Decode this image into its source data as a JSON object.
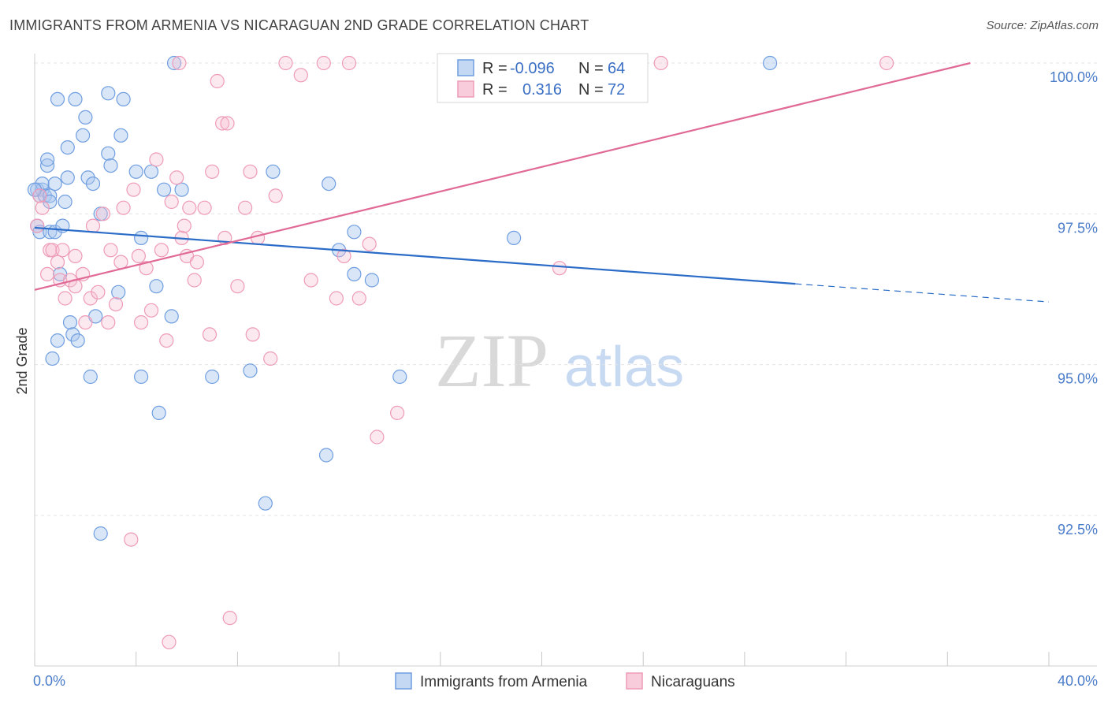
{
  "title": "IMMIGRANTS FROM ARMENIA VS NICARAGUAN 2ND GRADE CORRELATION CHART",
  "source": "Source: ZipAtlas.com",
  "watermark": {
    "zip": "ZIP",
    "atlas": "atlas"
  },
  "chart_data": {
    "type": "scatter",
    "ylabel": "2nd Grade",
    "xlim": [
      0,
      40
    ],
    "ylim": [
      90.2,
      100.2
    ],
    "x_tick_labels": [
      {
        "value": 0,
        "label": "0.0%"
      },
      {
        "value": 40,
        "label": "40.0%"
      }
    ],
    "x_minor_ticks": [
      4,
      8,
      12,
      16,
      20,
      24,
      28,
      32,
      36
    ],
    "y_ticks": [
      {
        "value": 100.0,
        "label": "100.0%"
      },
      {
        "value": 97.5,
        "label": "97.5%"
      },
      {
        "value": 95.0,
        "label": "95.0%"
      },
      {
        "value": 92.5,
        "label": "92.5%"
      }
    ],
    "colors": {
      "armenia": "#6f9ee0",
      "nicaraguans": "#ee9bb7",
      "armenia_line": "#2a6cc7",
      "nicaraguans_line": "#e06a95"
    },
    "legend": [
      {
        "r_label": "R =",
        "r": "-0.096",
        "n_label": "N =",
        "n": "64"
      },
      {
        "r_label": "R =",
        "r": "0.316",
        "n_label": "N =",
        "n": "72"
      }
    ],
    "series": [
      {
        "name": "Immigrants from Armenia",
        "points": [
          [
            0.1,
            97.3
          ],
          [
            0.1,
            97.9
          ],
          [
            0.2,
            97.8
          ],
          [
            0.2,
            97.2
          ],
          [
            0.3,
            97.9
          ],
          [
            0.3,
            98.0
          ],
          [
            0.4,
            97.8
          ],
          [
            0.5,
            98.3
          ],
          [
            0.5,
            98.4
          ],
          [
            0.6,
            97.8
          ],
          [
            0.6,
            97.7
          ],
          [
            0.6,
            97.2
          ],
          [
            0.7,
            95.1
          ],
          [
            0.8,
            98.0
          ],
          [
            0.8,
            97.2
          ],
          [
            0.9,
            95.4
          ],
          [
            0.9,
            99.4
          ],
          [
            1.0,
            96.5
          ],
          [
            1.1,
            97.3
          ],
          [
            1.2,
            97.7
          ],
          [
            1.3,
            98.6
          ],
          [
            1.3,
            98.1
          ],
          [
            1.4,
            95.7
          ],
          [
            1.5,
            95.5
          ],
          [
            1.6,
            99.4
          ],
          [
            1.7,
            95.4
          ],
          [
            1.9,
            98.8
          ],
          [
            2.0,
            99.1
          ],
          [
            2.1,
            98.1
          ],
          [
            2.2,
            94.8
          ],
          [
            2.3,
            98.0
          ],
          [
            2.4,
            95.8
          ],
          [
            2.6,
            92.2
          ],
          [
            2.6,
            97.5
          ],
          [
            2.9,
            98.5
          ],
          [
            2.9,
            99.5
          ],
          [
            3.0,
            98.3
          ],
          [
            3.3,
            96.2
          ],
          [
            3.4,
            98.8
          ],
          [
            3.5,
            99.4
          ],
          [
            4.0,
            98.2
          ],
          [
            4.2,
            97.1
          ],
          [
            4.2,
            94.8
          ],
          [
            4.6,
            98.2
          ],
          [
            4.8,
            96.3
          ],
          [
            4.9,
            94.2
          ],
          [
            5.1,
            97.9
          ],
          [
            5.4,
            95.8
          ],
          [
            5.5,
            100.0
          ],
          [
            5.8,
            97.9
          ],
          [
            7.0,
            94.8
          ],
          [
            8.5,
            94.9
          ],
          [
            9.1,
            92.7
          ],
          [
            9.4,
            98.2
          ],
          [
            11.5,
            93.5
          ],
          [
            11.6,
            98.0
          ],
          [
            12.0,
            96.9
          ],
          [
            12.6,
            96.5
          ],
          [
            12.6,
            97.2
          ],
          [
            13.3,
            96.4
          ],
          [
            14.4,
            94.8
          ],
          [
            18.9,
            97.1
          ],
          [
            29.0,
            100.0
          ],
          [
            0.0,
            97.9
          ]
        ],
        "trend": {
          "x0": 0,
          "y0": 97.27,
          "x1": 30.0,
          "y1": 96.34,
          "dash_x1": 40,
          "dash_y1": 96.04
        }
      },
      {
        "name": "Nicaraguans",
        "points": [
          [
            0.1,
            97.3
          ],
          [
            0.2,
            97.8
          ],
          [
            0.5,
            96.5
          ],
          [
            0.6,
            96.9
          ],
          [
            0.7,
            96.9
          ],
          [
            0.9,
            96.7
          ],
          [
            1.0,
            96.4
          ],
          [
            1.2,
            96.1
          ],
          [
            1.4,
            96.4
          ],
          [
            1.6,
            96.3
          ],
          [
            1.6,
            96.8
          ],
          [
            1.9,
            96.5
          ],
          [
            2.0,
            95.7
          ],
          [
            2.2,
            96.1
          ],
          [
            2.3,
            97.3
          ],
          [
            2.5,
            96.2
          ],
          [
            2.7,
            97.5
          ],
          [
            2.9,
            95.7
          ],
          [
            3.0,
            96.9
          ],
          [
            3.2,
            96.0
          ],
          [
            3.4,
            96.7
          ],
          [
            3.5,
            97.6
          ],
          [
            3.8,
            92.1
          ],
          [
            3.9,
            97.9
          ],
          [
            4.1,
            96.8
          ],
          [
            4.2,
            95.7
          ],
          [
            4.4,
            96.6
          ],
          [
            4.6,
            95.9
          ],
          [
            4.8,
            98.4
          ],
          [
            5.0,
            96.9
          ],
          [
            5.2,
            95.4
          ],
          [
            5.4,
            97.7
          ],
          [
            5.6,
            98.1
          ],
          [
            5.7,
            100.0
          ],
          [
            5.8,
            97.1
          ],
          [
            5.9,
            97.3
          ],
          [
            6.0,
            96.8
          ],
          [
            6.1,
            97.6
          ],
          [
            6.3,
            96.4
          ],
          [
            6.4,
            96.7
          ],
          [
            6.7,
            97.6
          ],
          [
            6.9,
            95.5
          ],
          [
            7.0,
            98.2
          ],
          [
            7.2,
            99.7
          ],
          [
            7.4,
            99.0
          ],
          [
            7.5,
            97.1
          ],
          [
            7.6,
            99.0
          ],
          [
            7.7,
            90.8
          ],
          [
            8.0,
            96.3
          ],
          [
            8.3,
            97.6
          ],
          [
            8.5,
            98.2
          ],
          [
            8.6,
            95.5
          ],
          [
            8.8,
            97.1
          ],
          [
            9.3,
            95.1
          ],
          [
            9.5,
            97.8
          ],
          [
            9.9,
            100.0
          ],
          [
            10.5,
            99.8
          ],
          [
            10.9,
            96.4
          ],
          [
            11.4,
            100.0
          ],
          [
            11.9,
            96.1
          ],
          [
            12.2,
            96.8
          ],
          [
            12.4,
            100.0
          ],
          [
            12.8,
            96.1
          ],
          [
            13.2,
            97.0
          ],
          [
            13.5,
            93.8
          ],
          [
            14.3,
            94.2
          ],
          [
            20.7,
            96.6
          ],
          [
            24.7,
            100.0
          ],
          [
            33.6,
            100.0
          ],
          [
            5.3,
            90.4
          ],
          [
            1.1,
            96.9
          ],
          [
            0.3,
            97.6
          ]
        ],
        "trend": {
          "x0": 0,
          "y0": 96.24,
          "x1": 36.9,
          "y1": 100.0
        }
      }
    ],
    "bottom_legend": [
      "Immigrants from Armenia",
      "Nicaraguans"
    ]
  }
}
